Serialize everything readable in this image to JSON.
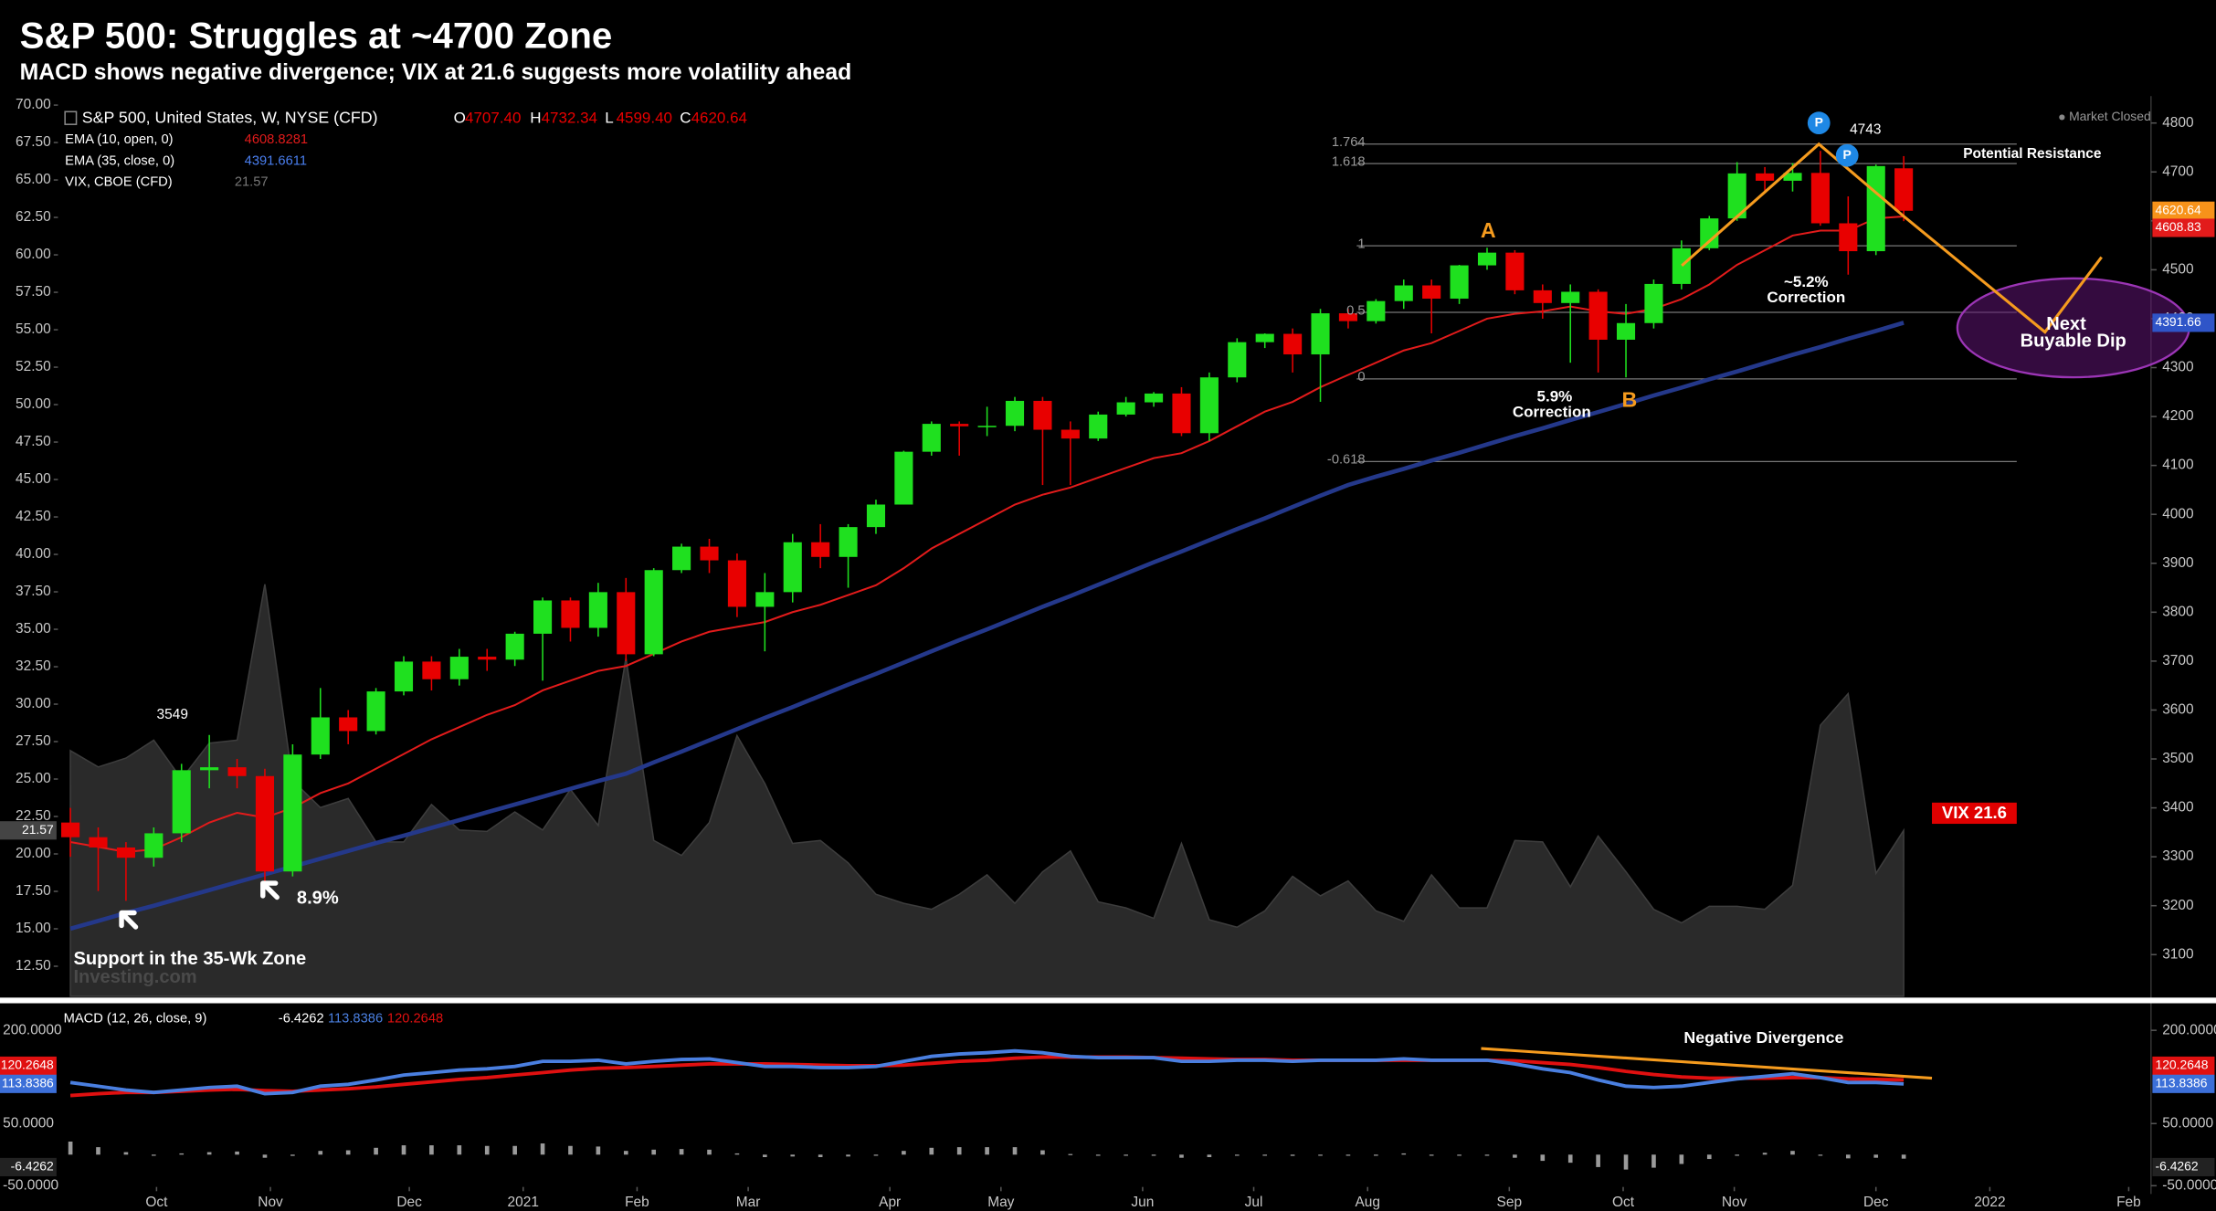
{
  "chart_data": [
    {
      "type": "candlestick",
      "title": "S&P 500: Struggles at ~4700 Zone",
      "subtitle": "MACD shows negative divergence; VIX at 21.6 suggests more volatility ahead",
      "instrument": "S&P 500, United States, W, NYSE (CFD)",
      "ohlc_keys": [
        "O",
        "H",
        "L",
        "C"
      ],
      "ohlc_labels": [
        "4707.40",
        "4732.34",
        "4599.40",
        "4620.64"
      ],
      "up_color": "#1fe01f",
      "down_color": "#e80000",
      "open": [
        3370,
        3340,
        3319,
        3298,
        3348,
        3477,
        3483,
        3465,
        3270,
        3509,
        3585,
        3557,
        3638,
        3699,
        3663,
        3709,
        3703,
        3756,
        3824,
        3768,
        3841,
        3714,
        3886,
        3934,
        3906,
        3811,
        3841,
        3943,
        3913,
        3974,
        4020,
        4128,
        4185,
        4180,
        4181,
        4232,
        4173,
        4155,
        4204,
        4229,
        4247,
        4166,
        4280,
        4352,
        4369,
        4327,
        4411,
        4395,
        4436,
        4468,
        4441,
        4509,
        4535,
        4458,
        4432,
        4455,
        4357,
        4391,
        4471,
        4544,
        4605,
        4697,
        4682,
        4698,
        4595,
        4538,
        4707.4
      ],
      "high": [
        3400,
        3360,
        3330,
        3360,
        3490,
        3549,
        3500,
        3480,
        3530,
        3645,
        3600,
        3645,
        3710,
        3710,
        3725,
        3725,
        3760,
        3830,
        3830,
        3860,
        3870,
        3890,
        3940,
        3950,
        3920,
        3880,
        3960,
        3980,
        3980,
        4030,
        4130,
        4190,
        4190,
        4220,
        4240,
        4240,
        4190,
        4210,
        4240,
        4250,
        4260,
        4290,
        4360,
        4370,
        4380,
        4420,
        4420,
        4440,
        4480,
        4480,
        4510,
        4545,
        4540,
        4470,
        4470,
        4460,
        4430,
        4480,
        4560,
        4610,
        4720,
        4710,
        4718,
        4743,
        4650,
        4715,
        4732.34
      ],
      "low": [
        3300,
        3230,
        3210,
        3280,
        3330,
        3440,
        3440,
        3240,
        3260,
        3500,
        3530,
        3550,
        3630,
        3640,
        3650,
        3680,
        3690,
        3660,
        3740,
        3750,
        3700,
        3710,
        3880,
        3880,
        3790,
        3720,
        3820,
        3890,
        3850,
        3960,
        4020,
        4120,
        4120,
        4160,
        4170,
        4060,
        4060,
        4150,
        4200,
        4220,
        4160,
        4150,
        4270,
        4340,
        4290,
        4230,
        4380,
        4390,
        4420,
        4370,
        4430,
        4500,
        4450,
        4400,
        4310,
        4290,
        4280,
        4380,
        4460,
        4540,
        4600,
        4660,
        4660,
        4590,
        4490,
        4530,
        4599.4
      ],
      "close": [
        3340,
        3319,
        3298,
        3348,
        3477,
        3483,
        3465,
        3270,
        3509,
        3585,
        3557,
        3638,
        3699,
        3663,
        3709,
        3703,
        3756,
        3824,
        3768,
        3841,
        3714,
        3886,
        3934,
        3906,
        3811,
        3841,
        3943,
        3913,
        3974,
        4020,
        4128,
        4185,
        4180,
        4181,
        4232,
        4173,
        4155,
        4204,
        4229,
        4247,
        4166,
        4280,
        4352,
        4369,
        4327,
        4411,
        4395,
        4436,
        4468,
        4441,
        4509,
        4535,
        4458,
        4432,
        4455,
        4357,
        4391,
        4471,
        4544,
        4605,
        4697,
        4682,
        4698,
        4595,
        4538,
        4712,
        4620.64
      ],
      "close_color": "#f7931a",
      "series": [
        {
          "name": "EMA (10, open, 0)",
          "color": "#e21b1b",
          "last_label": "4608.83",
          "values": [
            3330,
            3320,
            3310,
            3315,
            3340,
            3370,
            3390,
            3380,
            3400,
            3430,
            3450,
            3480,
            3510,
            3540,
            3565,
            3590,
            3610,
            3640,
            3660,
            3680,
            3690,
            3715,
            3740,
            3760,
            3770,
            3780,
            3800,
            3815,
            3835,
            3855,
            3890,
            3930,
            3960,
            3990,
            4020,
            4040,
            4055,
            4075,
            4095,
            4115,
            4125,
            4150,
            4180,
            4210,
            4230,
            4260,
            4285,
            4310,
            4335,
            4350,
            4375,
            4400,
            4410,
            4415,
            4425,
            4415,
            4410,
            4420,
            4440,
            4470,
            4510,
            4540,
            4570,
            4580,
            4580,
            4605,
            4608.8281
          ]
        },
        {
          "name": "EMA (35, close, 0)",
          "color": "#24388a",
          "label_color": "#4a7ff0",
          "last_label": "4391.66",
          "values": [
            3153,
            3169,
            3185,
            3200,
            3216,
            3232,
            3248,
            3264,
            3280,
            3296,
            3312,
            3328,
            3343,
            3359,
            3375,
            3391,
            3407,
            3423,
            3439,
            3455,
            3470,
            3493,
            3515,
            3538,
            3561,
            3584,
            3606,
            3629,
            3652,
            3674,
            3697,
            3720,
            3743,
            3765,
            3788,
            3811,
            3833,
            3856,
            3879,
            3902,
            3924,
            3947,
            3970,
            3992,
            4015,
            4038,
            4060,
            4077,
            4093,
            4110,
            4126,
            4143,
            4160,
            4176,
            4193,
            4209,
            4226,
            4243,
            4259,
            4276,
            4292,
            4309,
            4326,
            4342,
            4359,
            4375,
            4391.6611
          ]
        }
      ],
      "vix": {
        "name": "VIX, CBOE (CFD)",
        "axis": "y2",
        "color": "#2a2a2a",
        "line_color": "#3d3d3d",
        "label_color": "#777777",
        "values": [
          26.9,
          25.8,
          26.4,
          27.6,
          25.0,
          27.4,
          27.6,
          38.0,
          24.9,
          23.1,
          23.7,
          20.8,
          20.8,
          23.3,
          21.6,
          21.5,
          22.8,
          21.6,
          24.3,
          21.9,
          33.1,
          20.9,
          19.9,
          22.1,
          27.9,
          24.7,
          20.7,
          20.9,
          19.4,
          17.3,
          16.7,
          16.3,
          17.3,
          18.6,
          16.7,
          18.8,
          20.2,
          16.8,
          16.4,
          15.7,
          20.7,
          15.6,
          15.1,
          16.2,
          18.5,
          17.2,
          18.2,
          16.2,
          15.5,
          18.6,
          16.4,
          16.4,
          20.9,
          20.8,
          17.8,
          21.2,
          18.8,
          16.3,
          15.4,
          16.5,
          16.5,
          16.3,
          17.9,
          28.6,
          30.7,
          18.7,
          21.57
        ]
      },
      "xlim": [
        -0.5,
        74.8
      ],
      "ylim": [
        3015,
        4855
      ],
      "yticks": [
        3100,
        3200,
        3300,
        3400,
        3500,
        3600,
        3700,
        3800,
        3900,
        4000,
        4100,
        4200,
        4300,
        4400,
        4500,
        4600,
        4700,
        4800
      ],
      "y2lim": [
        10.5,
        70.6
      ],
      "y2ticks": [
        {
          "value": 12.5,
          "label": "12.50"
        },
        {
          "value": 15,
          "label": "15.00"
        },
        {
          "value": 17.5,
          "label": "17.50"
        },
        {
          "value": 20,
          "label": "20.00"
        },
        {
          "value": 22.5,
          "label": "22.50"
        },
        {
          "value": 25,
          "label": "25.00"
        },
        {
          "value": 27.5,
          "label": "27.50"
        },
        {
          "value": 30,
          "label": "30.00"
        },
        {
          "value": 32.5,
          "label": "32.50"
        },
        {
          "value": 35,
          "label": "35.00"
        },
        {
          "value": 37.5,
          "label": "37.50"
        },
        {
          "value": 40,
          "label": "40.00"
        },
        {
          "value": 42.5,
          "label": "42.50"
        },
        {
          "value": 45,
          "label": "45.00"
        },
        {
          "value": 47.5,
          "label": "47.50"
        },
        {
          "value": 50,
          "label": "50.00"
        },
        {
          "value": 52.5,
          "label": "52.50"
        },
        {
          "value": 55,
          "label": "55.00"
        },
        {
          "value": 57.5,
          "label": "57.50"
        },
        {
          "value": 60,
          "label": "60.00"
        },
        {
          "value": 62.5,
          "label": "62.50"
        },
        {
          "value": 65,
          "label": "65.00"
        },
        {
          "value": 67.5,
          "label": "67.50"
        },
        {
          "value": 70,
          "label": "70.00"
        }
      ],
      "fib_levels": [
        {
          "level": 1.764,
          "price": 4757
        },
        {
          "level": 1.618,
          "price": 4717
        },
        {
          "level": 1,
          "price": 4549
        },
        {
          "level": 0.5,
          "price": 4413
        },
        {
          "level": 0,
          "price": 4277
        },
        {
          "level": -0.618,
          "price": 4108
        }
      ],
      "annotations": {
        "market_status": "Market Closed",
        "resistance": "Potential Resistance",
        "point_a": "A",
        "point_b": "B",
        "correction_1": [
          "5.9%",
          "Correction"
        ],
        "correction_2": [
          "~5.2%",
          "Correction"
        ],
        "dip": [
          "Next",
          "Buyable Dip"
        ],
        "vix_note": "VIX 21.6",
        "bounce": "8.9%",
        "support": "Support in the 35-Wk Zone",
        "pivot": "P",
        "watermark": "Investing.com"
      }
    },
    {
      "type": "macd",
      "name": "MACD (12, 26, close, 9)",
      "macd": {
        "color": "#4a7fe0",
        "values": [
          116,
          110,
          104,
          100,
          104,
          108,
          110,
          98,
          100,
          110,
          113,
          120,
          128,
          132,
          136,
          138,
          142,
          150,
          150,
          152,
          146,
          150,
          153,
          154,
          148,
          142,
          142,
          140,
          140,
          142,
          150,
          158,
          162,
          164,
          167,
          164,
          158,
          156,
          156,
          156,
          150,
          150,
          152,
          152,
          150,
          152,
          152,
          152,
          154,
          152,
          152,
          152,
          146,
          138,
          132,
          120,
          110,
          108,
          110,
          116,
          122,
          126,
          130,
          124,
          116,
          116,
          113.8386
        ]
      },
      "signal": {
        "color": "#e01010",
        "values": [
          95,
          98,
          100,
          100,
          102,
          104,
          105,
          103,
          102,
          104,
          106,
          109,
          113,
          117,
          121,
          124,
          128,
          132,
          136,
          139,
          140,
          142,
          144,
          146,
          146,
          146,
          145,
          144,
          143,
          143,
          144,
          147,
          150,
          152,
          155,
          157,
          157,
          157,
          157,
          156,
          155,
          154,
          153,
          153,
          152,
          152,
          152,
          152,
          152,
          152,
          152,
          152,
          151,
          148,
          145,
          140,
          134,
          129,
          125,
          123,
          123,
          123,
          124,
          124,
          122,
          121,
          120.2648
        ]
      },
      "histogram": {
        "color": "#9a9a9a",
        "values": [
          21,
          12,
          4,
          0,
          2,
          4,
          5,
          -5,
          -2,
          6,
          7,
          11,
          15,
          15,
          15,
          14,
          14,
          18,
          14,
          13,
          6,
          8,
          9,
          8,
          2,
          -4,
          -3,
          -4,
          -3,
          -1,
          6,
          11,
          12,
          12,
          12,
          7,
          1,
          -1,
          -1,
          0,
          -5,
          -4,
          -1,
          -1,
          -2,
          0,
          0,
          0,
          2,
          0,
          0,
          0,
          -5,
          -10,
          -13,
          -20,
          -24,
          -21,
          -15,
          -7,
          -1,
          3,
          6,
          0,
          -6,
          -5,
          -6.4262
        ]
      },
      "annotation": "Negative Divergence",
      "xlim": [
        -0.5,
        74.8
      ],
      "ylim": [
        -52,
        239
      ],
      "yticks": [
        {
          "value": 200,
          "label": "200.0000"
        },
        {
          "value": 50,
          "label": "50.0000"
        },
        {
          "value": -50,
          "label": "-50.0000"
        }
      ],
      "xticks": [
        {
          "value": 3.1,
          "label": "Oct"
        },
        {
          "value": 7.2,
          "label": "Nov"
        },
        {
          "value": 12.2,
          "label": "Dec"
        },
        {
          "value": 16.3,
          "label": "2021"
        },
        {
          "value": 20.4,
          "label": "Feb"
        },
        {
          "value": 24.4,
          "label": "Mar"
        },
        {
          "value": 29.5,
          "label": "Apr"
        },
        {
          "value": 33.5,
          "label": "May"
        },
        {
          "value": 38.6,
          "label": "Jun"
        },
        {
          "value": 42.6,
          "label": "Jul"
        },
        {
          "value": 46.7,
          "label": "Aug"
        },
        {
          "value": 51.8,
          "label": "Sep"
        },
        {
          "value": 55.9,
          "label": "Oct"
        },
        {
          "value": 59.9,
          "label": "Nov"
        },
        {
          "value": 65.0,
          "label": "Dec"
        },
        {
          "value": 69.1,
          "label": "2022"
        },
        {
          "value": 74.1,
          "label": "Feb"
        }
      ]
    }
  ]
}
